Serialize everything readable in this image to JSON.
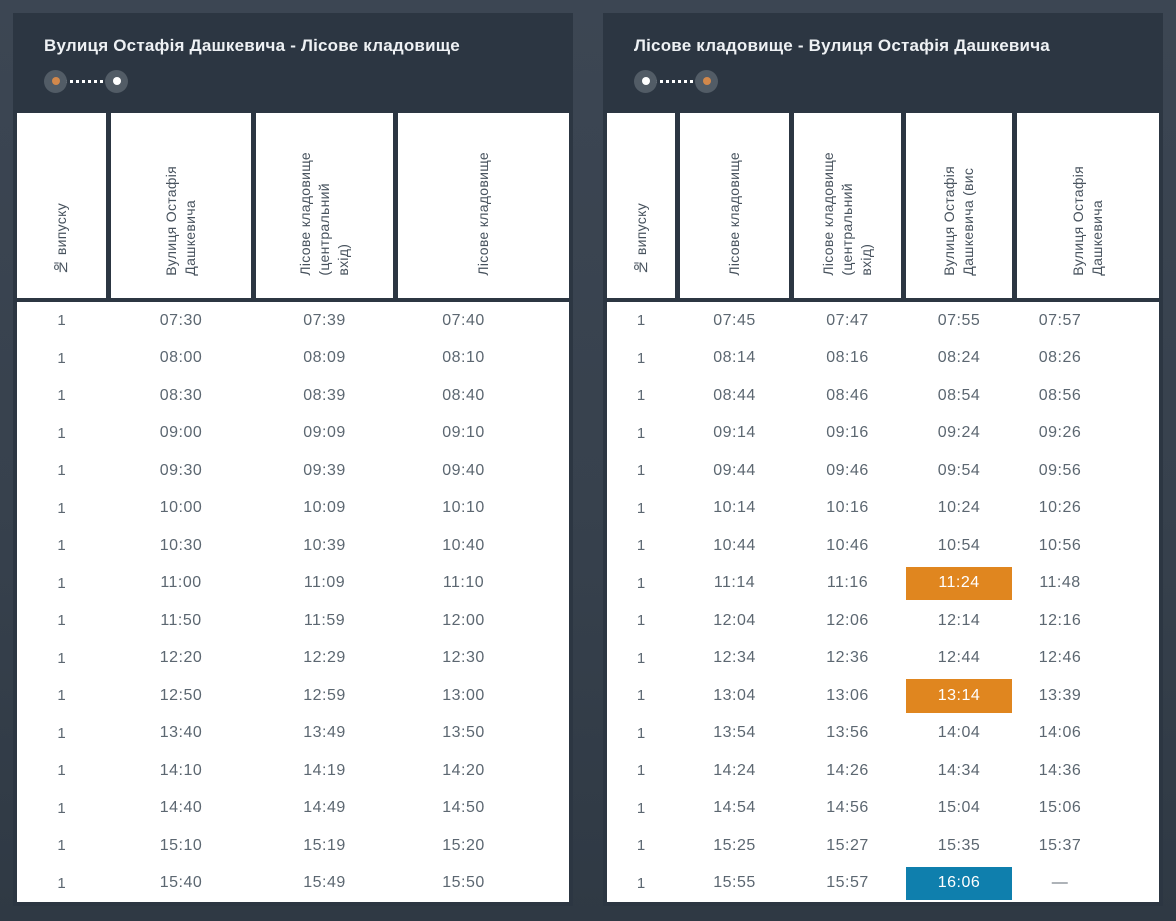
{
  "colors": {
    "card_background": "#2c3642",
    "cell_background": "#ffffff",
    "header_text": "#47525d",
    "body_text": "#5c6771",
    "title_text": "#eef1f4",
    "highlight_orange": "#e0861f",
    "highlight_blue": "#0f7fad",
    "highlight_text": "#ffffff",
    "stop_circle": "#525c66",
    "stop_dot_orange": "#d2884b",
    "stop_dot_white": "#ffffff"
  },
  "tables": [
    {
      "title": "Вулиця Остафія Дашкевича - Лісове кладовище",
      "route": {
        "start_dot": "#d2884b",
        "end_dot": "#ffffff"
      },
      "columns": [
        "№ випуску",
        "Вулиця Остафія\nДашкевича",
        "Лісове кладовище\n(центральний\nвхід)",
        "Лісове кладовище"
      ],
      "rows": [
        [
          "1",
          "07:30",
          "07:39",
          "07:40"
        ],
        [
          "1",
          "08:00",
          "08:09",
          "08:10"
        ],
        [
          "1",
          "08:30",
          "08:39",
          "08:40"
        ],
        [
          "1",
          "09:00",
          "09:09",
          "09:10"
        ],
        [
          "1",
          "09:30",
          "09:39",
          "09:40"
        ],
        [
          "1",
          "10:00",
          "10:09",
          "10:10"
        ],
        [
          "1",
          "10:30",
          "10:39",
          "10:40"
        ],
        [
          "1",
          "11:00",
          "11:09",
          "11:10"
        ],
        [
          "1",
          "11:50",
          "11:59",
          "12:00"
        ],
        [
          "1",
          "12:20",
          "12:29",
          "12:30"
        ],
        [
          "1",
          "12:50",
          "12:59",
          "13:00"
        ],
        [
          "1",
          "13:40",
          "13:49",
          "13:50"
        ],
        [
          "1",
          "14:10",
          "14:19",
          "14:20"
        ],
        [
          "1",
          "14:40",
          "14:49",
          "14:50"
        ],
        [
          "1",
          "15:10",
          "15:19",
          "15:20"
        ],
        [
          "1",
          "15:40",
          "15:49",
          "15:50"
        ]
      ],
      "highlights": []
    },
    {
      "title": "Лісове кладовище - Вулиця Остафія Дашкевича",
      "route": {
        "start_dot": "#ffffff",
        "end_dot": "#d2884b"
      },
      "columns": [
        "№ випуску",
        "Лісове кладовище",
        "Лісове кладовище\n(центральний\nвхід)",
        "Вулиця Остафія\nДашкевича (вис",
        "Вулиця Остафія\nДашкевича"
      ],
      "rows": [
        [
          "1",
          "07:45",
          "07:47",
          "07:55",
          "07:57"
        ],
        [
          "1",
          "08:14",
          "08:16",
          "08:24",
          "08:26"
        ],
        [
          "1",
          "08:44",
          "08:46",
          "08:54",
          "08:56"
        ],
        [
          "1",
          "09:14",
          "09:16",
          "09:24",
          "09:26"
        ],
        [
          "1",
          "09:44",
          "09:46",
          "09:54",
          "09:56"
        ],
        [
          "1",
          "10:14",
          "10:16",
          "10:24",
          "10:26"
        ],
        [
          "1",
          "10:44",
          "10:46",
          "10:54",
          "10:56"
        ],
        [
          "1",
          "11:14",
          "11:16",
          "11:24",
          "11:48"
        ],
        [
          "1",
          "12:04",
          "12:06",
          "12:14",
          "12:16"
        ],
        [
          "1",
          "12:34",
          "12:36",
          "12:44",
          "12:46"
        ],
        [
          "1",
          "13:04",
          "13:06",
          "13:14",
          "13:39"
        ],
        [
          "1",
          "13:54",
          "13:56",
          "14:04",
          "14:06"
        ],
        [
          "1",
          "14:24",
          "14:26",
          "14:34",
          "14:36"
        ],
        [
          "1",
          "14:54",
          "14:56",
          "15:04",
          "15:06"
        ],
        [
          "1",
          "15:25",
          "15:27",
          "15:35",
          "15:37"
        ],
        [
          "1",
          "15:55",
          "15:57",
          "16:06",
          "—"
        ]
      ],
      "highlights": [
        {
          "row": 7,
          "col": 3,
          "color": "#e0861f"
        },
        {
          "row": 10,
          "col": 3,
          "color": "#e0861f"
        },
        {
          "row": 15,
          "col": 3,
          "color": "#0f7fad"
        }
      ]
    }
  ]
}
